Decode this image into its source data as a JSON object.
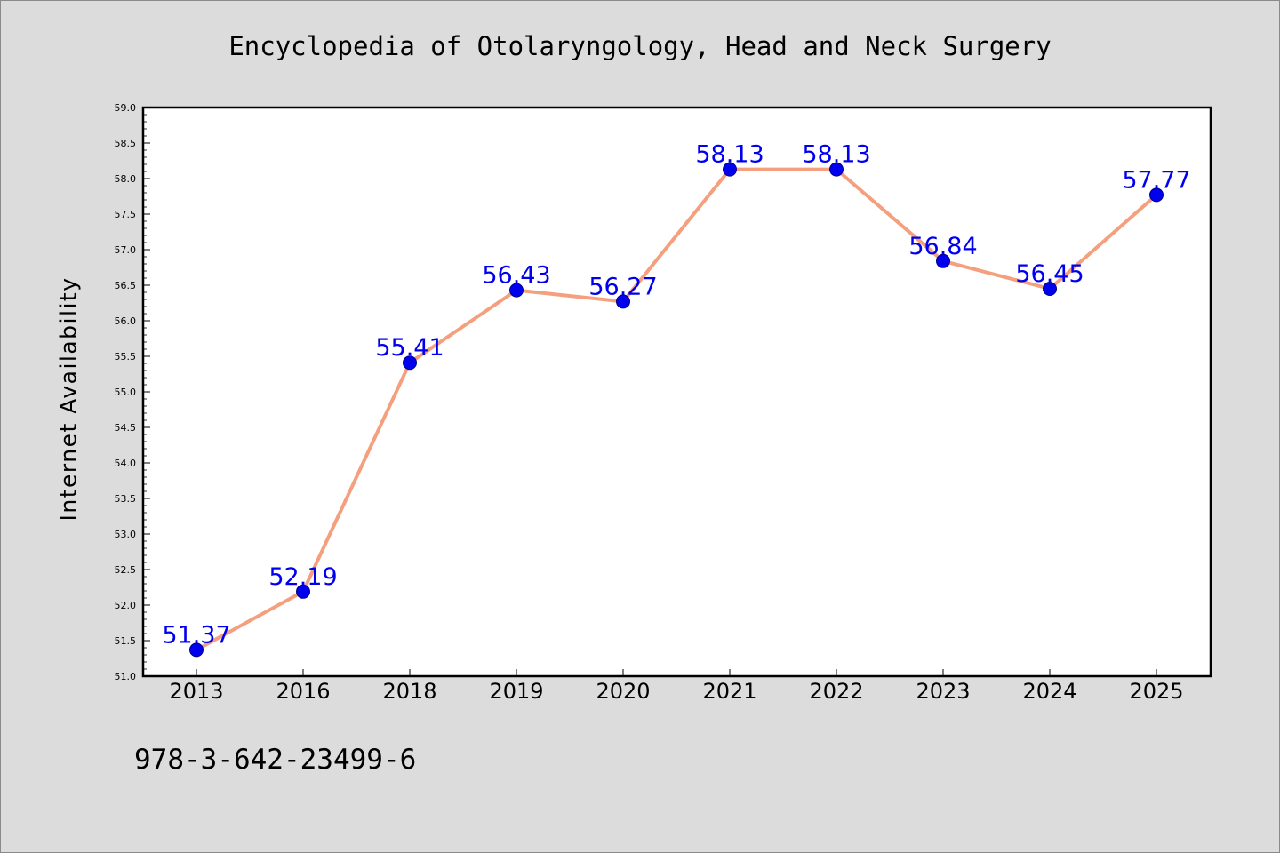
{
  "title": "Encyclopedia of Otolaryngology, Head and Neck Surgery",
  "footer_text": "978-3-642-23499-6",
  "colors": {
    "background": "#dcdcdc",
    "plot_background": "#ffffff",
    "line": "#f4a07e",
    "marker": "#0000ee",
    "label": "#0000ee"
  },
  "chart_data": {
    "type": "line",
    "title": "Encyclopedia of Otolaryngology, Head and Neck Surgery",
    "xlabel": "",
    "ylabel": "Internet Availability",
    "categories": [
      "2013",
      "2016",
      "2018",
      "2019",
      "2020",
      "2021",
      "2022",
      "2023",
      "2024",
      "2025"
    ],
    "series": [
      {
        "values": [
          51.37,
          52.19,
          55.41,
          56.43,
          56.27,
          58.13,
          58.13,
          56.84,
          56.45,
          57.77
        ],
        "labels": [
          "51.37",
          "52.19",
          "55.41",
          "56.43",
          "56.27",
          "58.13",
          "58.13",
          "56.84",
          "56.45",
          "57.77"
        ]
      }
    ],
    "ylim": [
      51.0,
      59.0
    ],
    "yticks": [
      "51.0",
      "51.5",
      "52.0",
      "52.5",
      "53.0",
      "53.5",
      "54.0",
      "54.5",
      "55.0",
      "55.5",
      "56.0",
      "56.5",
      "57.0",
      "57.5",
      "58.0",
      "58.5",
      "59.0"
    ],
    "grid": false,
    "legend": "none"
  }
}
